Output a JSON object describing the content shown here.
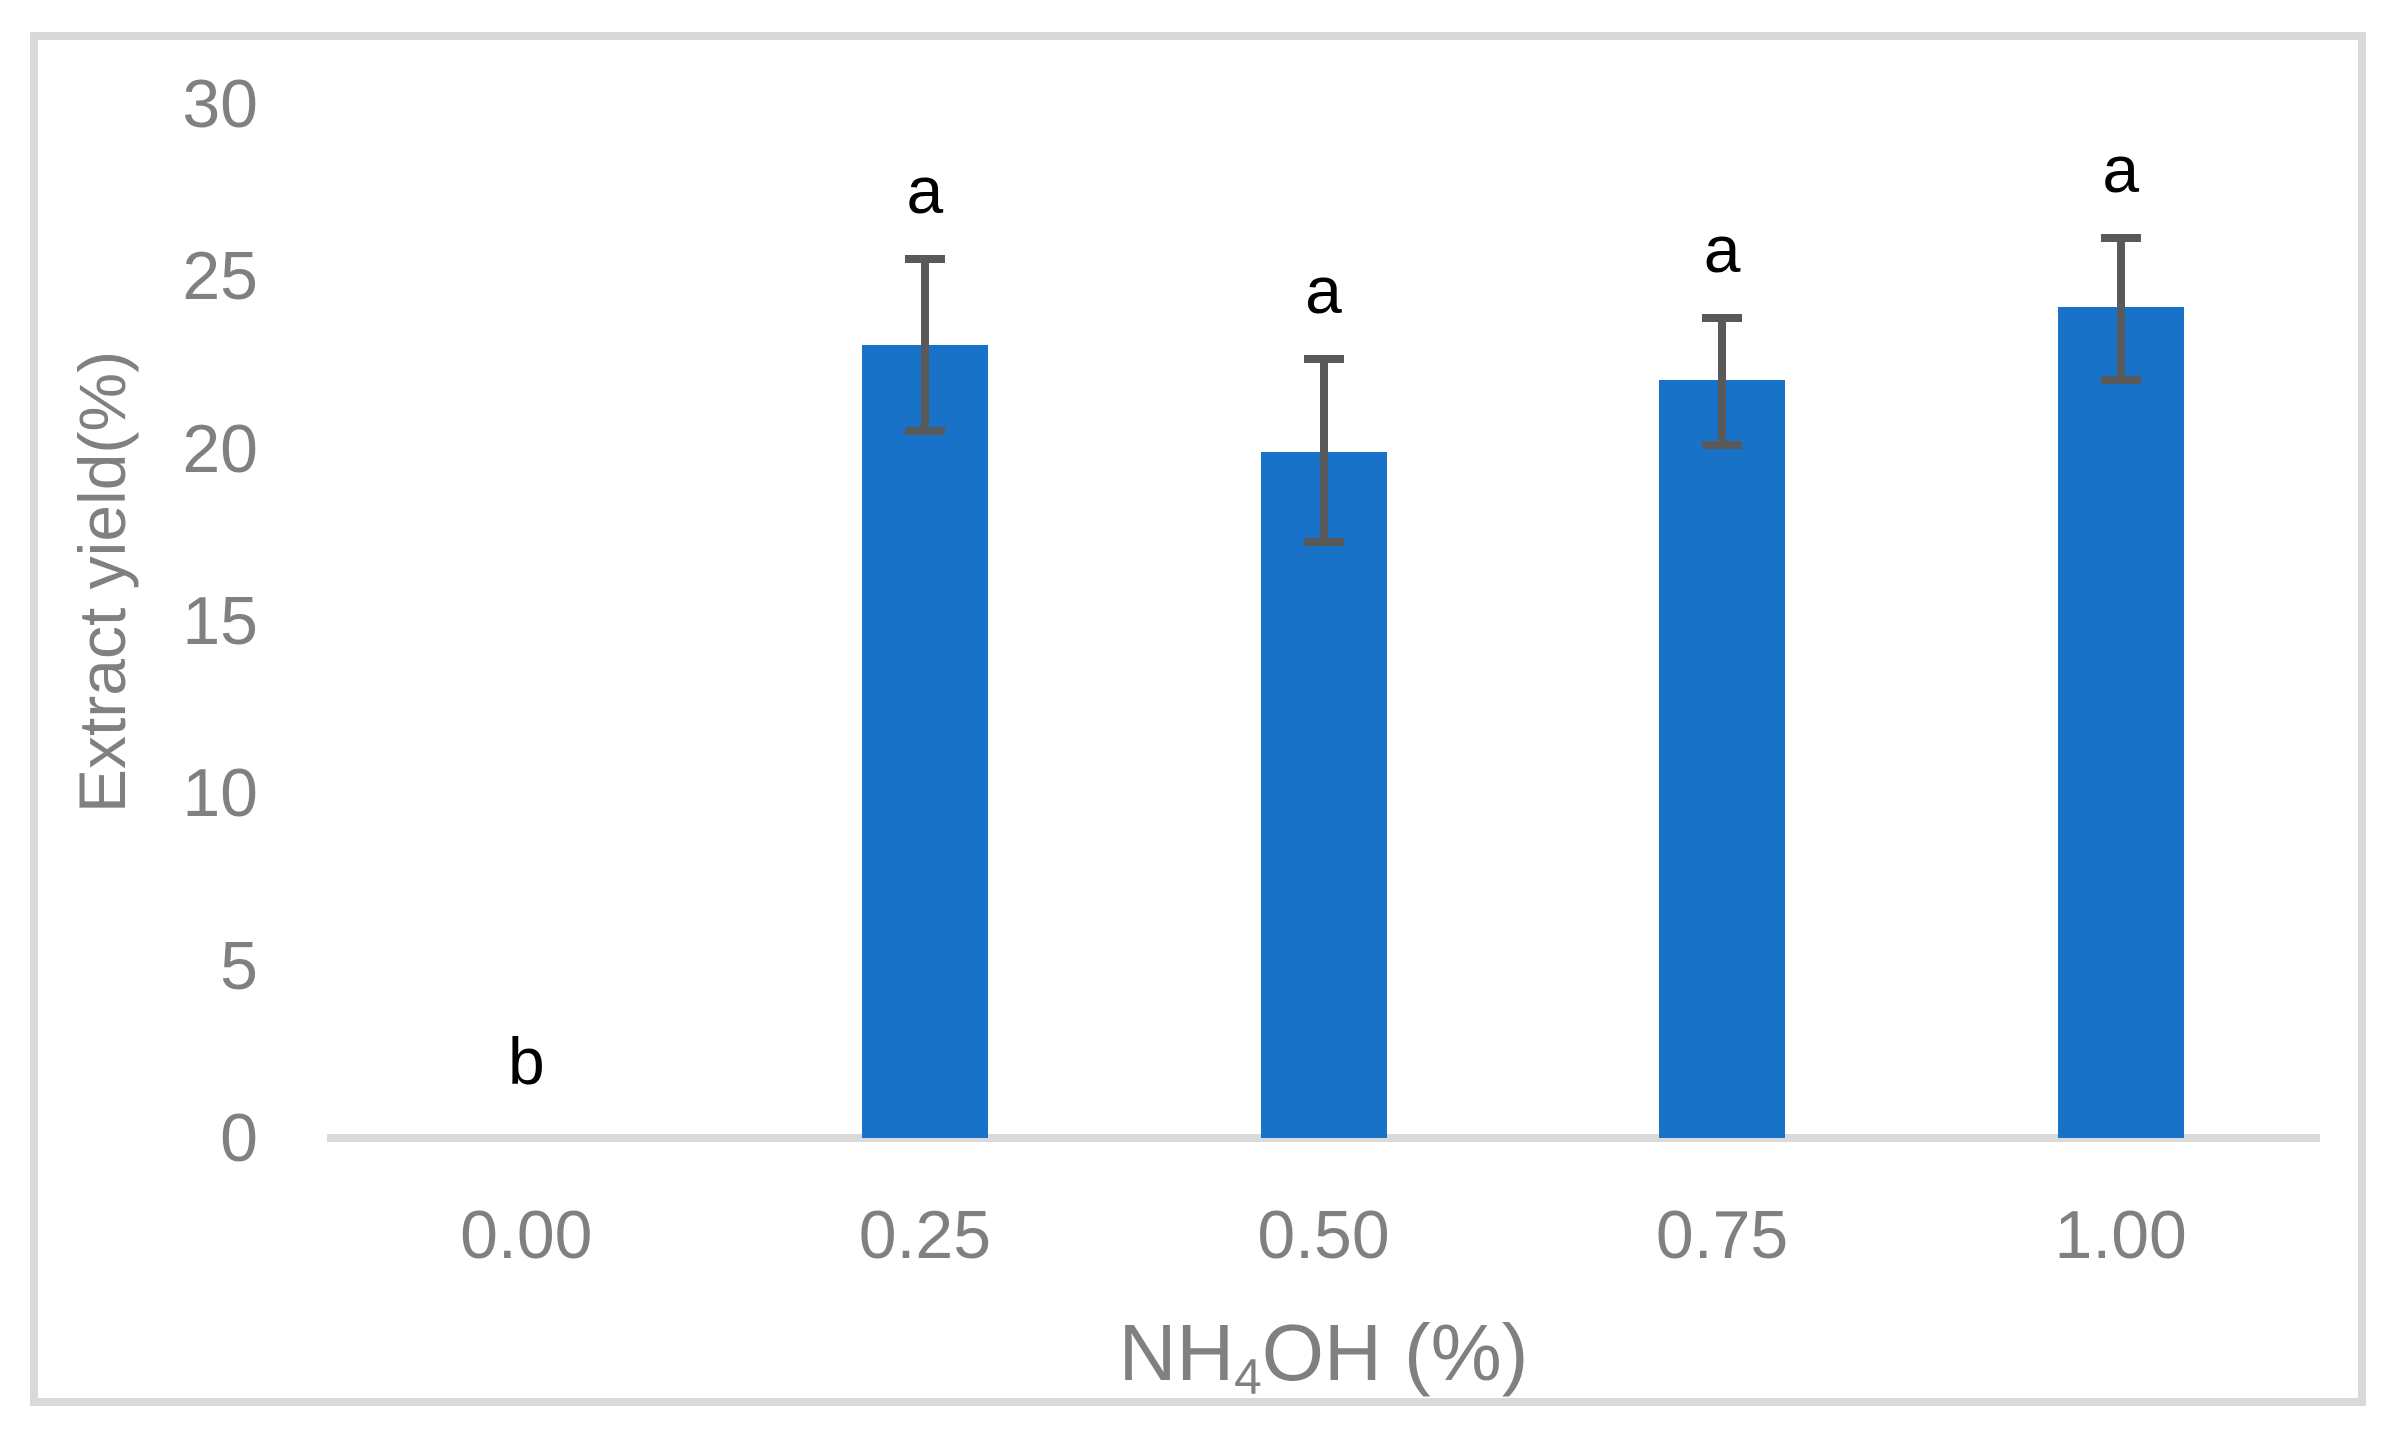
{
  "figure": {
    "background": "#ffffff",
    "border_color": "#d9d9d9"
  },
  "chart_data": {
    "type": "bar",
    "title": "",
    "xlabel_text": "NH4OH (%)",
    "xlabel_parts": {
      "pre": "NH",
      "sub": "4",
      "post": "OH (%)"
    },
    "ylabel": "Extract yield(%)",
    "categories": [
      "0.00",
      "0.25",
      "0.50",
      "0.75",
      "1.00"
    ],
    "values": [
      0,
      23.0,
      19.9,
      22.0,
      24.1
    ],
    "error_plus": [
      0,
      2.5,
      2.7,
      1.8,
      2.0
    ],
    "error_minus": [
      0,
      2.5,
      2.6,
      1.9,
      2.1
    ],
    "sig_letters": [
      "b",
      "a",
      "a",
      "a",
      "a"
    ],
    "y_ticks": [
      0,
      5,
      10,
      15,
      20,
      25,
      30
    ],
    "ylim": [
      0,
      30
    ],
    "grid": false,
    "legend_position": "none",
    "bar_color": "#1873c8",
    "error_color": "#595959",
    "axis_label_color": "#808080",
    "axis_line_color": "#d9d9d9",
    "letter_color": "#000000"
  }
}
